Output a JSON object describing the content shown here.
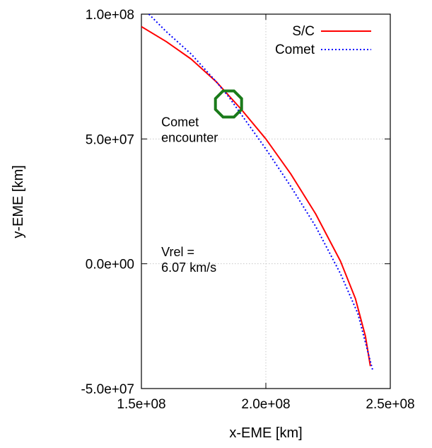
{
  "chart_data": {
    "type": "line",
    "title": "",
    "xlabel": "x-EME [km]",
    "ylabel": "y-EME [km]",
    "xlim": [
      150000000,
      250000000
    ],
    "ylim": [
      -50000000,
      100000000
    ],
    "xticks": [
      150000000,
      200000000,
      250000000
    ],
    "xtick_labels": [
      "1.5e+08",
      "2.0e+08",
      "2.5e+08"
    ],
    "yticks": [
      -50000000,
      0,
      50000000,
      100000000
    ],
    "ytick_labels": [
      "-5.0e+07",
      "0.0e+00",
      "5.0e+07",
      "1.0e+08"
    ],
    "grid": true,
    "legend_position": "top-right",
    "series": [
      {
        "name": "S/C",
        "color": "#ff0000",
        "style": "solid",
        "x": [
          150000000,
          160000000,
          170000000,
          180000000,
          190000000,
          200000000,
          210000000,
          220000000,
          230000000,
          236000000,
          240000000,
          242000000
        ],
        "y": [
          95000000,
          89000000,
          82000000,
          73000000,
          62000000,
          50000000,
          36000000,
          20000000,
          1000000,
          -14000000,
          -29000000,
          -41000000
        ]
      },
      {
        "name": "Comet",
        "color": "#0000ff",
        "style": "dotted",
        "x": [
          153000000,
          160000000,
          170000000,
          180000000,
          185000000,
          190000000,
          200000000,
          210000000,
          220000000,
          230000000,
          237000000,
          243000000
        ],
        "y": [
          100000000,
          93000000,
          84000000,
          73000000,
          67000000,
          60000000,
          46000000,
          31000000,
          15000000,
          -4000000,
          -20000000,
          -43000000
        ]
      }
    ],
    "annotations": [
      {
        "text_lines": [
          "Comet",
          "encounter"
        ],
        "x": 158000000,
        "y": 55000000,
        "color": "#000000"
      },
      {
        "text_lines": [
          "Vrel =",
          "6.07 km/s"
        ],
        "x": 158000000,
        "y": 3000000,
        "color": "#000000"
      }
    ],
    "markers": [
      {
        "label": "encounter-marker",
        "shape": "octagon",
        "color": "#1a7a1a",
        "x": 185000000,
        "y": 64000000
      }
    ]
  }
}
